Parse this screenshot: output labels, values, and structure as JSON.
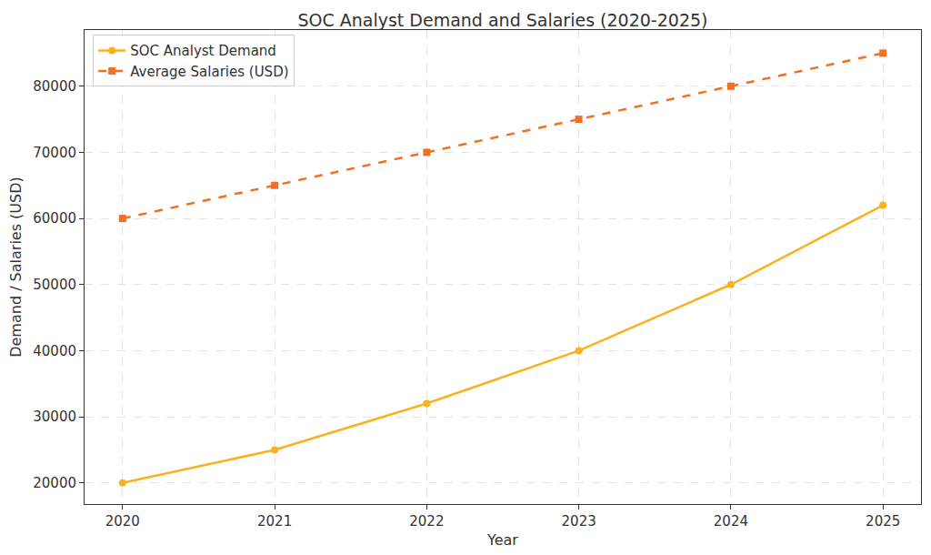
{
  "chart_data": {
    "type": "line",
    "title": "SOC Analyst Demand and Salaries (2020-2025)",
    "x_label": "Year",
    "y_label": "Demand / Salaries (USD)",
    "x": [
      2020,
      2021,
      2022,
      2023,
      2024,
      2025
    ],
    "series": [
      {
        "name": "SOC Analyst Demand",
        "color": "#f9b21e",
        "marker": "circle",
        "line_style": "solid",
        "values": [
          20000,
          25000,
          32000,
          40000,
          50000,
          62000
        ]
      },
      {
        "name": "Average Salaries (USD)",
        "color": "#f07023",
        "marker": "square",
        "line_style": "dash",
        "values": [
          60000,
          65000,
          70000,
          75000,
          80000,
          85000
        ]
      }
    ],
    "xlim": [
      2019.75,
      2025.25
    ],
    "xticks": [
      2020,
      2021,
      2022,
      2023,
      2024,
      2025
    ],
    "ylim": [
      16800,
      88500
    ],
    "yticks": [
      20000,
      30000,
      40000,
      50000,
      60000,
      70000,
      80000
    ],
    "grid": true,
    "legend": "upper left"
  }
}
